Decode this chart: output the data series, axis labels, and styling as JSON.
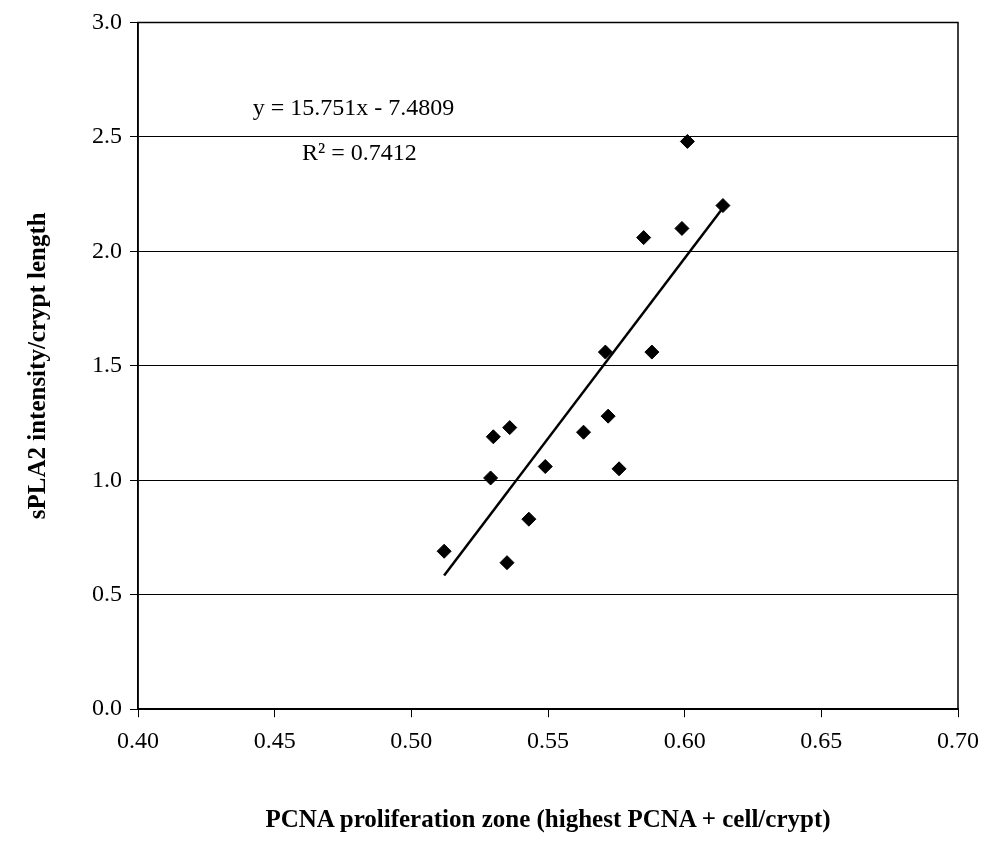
{
  "chart_data": {
    "type": "scatter",
    "xlabel": "PCNA proliferation zone (highest PCNA + cell/crypt)",
    "ylabel": "sPLA2 intensity/crypt length",
    "annotations": [
      "y = 15.751x - 7.4809",
      "R² = 0.7412"
    ],
    "series": [
      {
        "color": "#000000",
        "x": [
          0.512,
          0.53,
          0.536,
          0.529,
          0.549,
          0.543,
          0.535,
          0.563,
          0.572,
          0.571,
          0.576,
          0.585,
          0.588,
          0.599,
          0.601,
          0.614
        ],
        "values": [
          0.69,
          1.19,
          1.23,
          1.01,
          1.06,
          0.83,
          0.64,
          1.21,
          1.28,
          1.56,
          1.05,
          2.06,
          1.56,
          2.1,
          2.48,
          2.2
        ]
      },
      {
        "type": "line",
        "marker": "none",
        "color": "#000000",
        "x": [
          0.512,
          0.615
        ],
        "values": [
          0.584,
          2.206
        ]
      }
    ],
    "xlim": [
      0.4,
      0.7
    ],
    "xticks": [
      {
        "value": 0.4,
        "label": "0.40"
      },
      {
        "value": 0.45,
        "label": "0.45"
      },
      {
        "value": 0.5,
        "label": "0.50"
      },
      {
        "value": 0.55,
        "label": "0.55"
      },
      {
        "value": 0.6,
        "label": "0.60"
      },
      {
        "value": 0.65,
        "label": "0.65"
      },
      {
        "value": 0.7,
        "label": "0.70"
      }
    ],
    "ylim": [
      0,
      3
    ],
    "yticks": [
      {
        "value": 0,
        "label": "0.0"
      },
      {
        "value": 0.5,
        "label": "0.5"
      },
      {
        "value": 1,
        "label": "1.0"
      },
      {
        "value": 1.5,
        "label": "1.5"
      },
      {
        "value": 2,
        "label": "2.0"
      },
      {
        "value": 2.5,
        "label": "2.5"
      },
      {
        "value": 3,
        "label": "3.0"
      }
    ],
    "grid": "y",
    "legend": false,
    "marker": "diamond",
    "line_style": "solid"
  }
}
